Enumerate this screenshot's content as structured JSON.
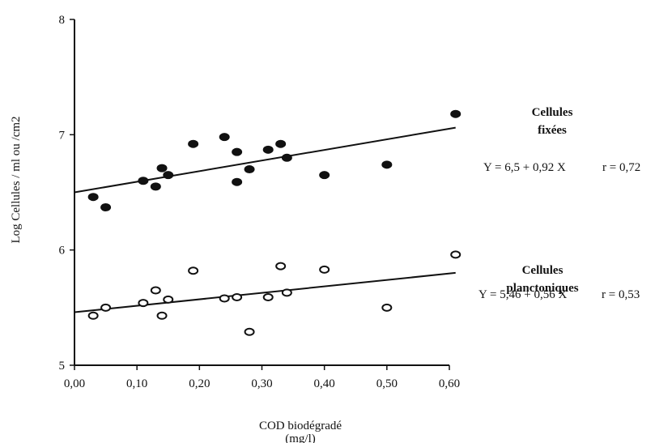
{
  "chart_data": {
    "type": "scatter",
    "title": "",
    "xlabel": "COD biodégradé",
    "xlabel_unit": "(mg/l)",
    "ylabel": "Log Cellules / ml ou /cm2",
    "xlim": [
      0,
      0.6
    ],
    "ylim": [
      5,
      8
    ],
    "x_ticks": [
      "0,00",
      "0,10",
      "0,20",
      "0,30",
      "0,40",
      "0,50",
      "0,60"
    ],
    "y_ticks": [
      "5",
      "6",
      "7",
      "8"
    ],
    "grid": false,
    "series": [
      {
        "name": "Cellules fixées",
        "name_lines": [
          "Cellules",
          "fixées"
        ],
        "marker": "filled-circle",
        "equation": "Y = 6,5 + 0,92 X",
        "r": "r = 0,72",
        "fit": {
          "intercept": 6.5,
          "slope": 0.92
        },
        "points": [
          [
            0.03,
            6.46
          ],
          [
            0.05,
            6.37
          ],
          [
            0.11,
            6.6
          ],
          [
            0.13,
            6.55
          ],
          [
            0.14,
            6.71
          ],
          [
            0.15,
            6.65
          ],
          [
            0.19,
            6.92
          ],
          [
            0.24,
            6.98
          ],
          [
            0.26,
            6.59
          ],
          [
            0.26,
            6.85
          ],
          [
            0.28,
            6.7
          ],
          [
            0.31,
            6.87
          ],
          [
            0.33,
            6.92
          ],
          [
            0.34,
            6.8
          ],
          [
            0.4,
            6.65
          ],
          [
            0.5,
            6.74
          ],
          [
            0.61,
            7.18
          ]
        ]
      },
      {
        "name": "Cellules planctoniques",
        "name_lines": [
          "Cellules",
          "planctoniques"
        ],
        "marker": "open-circle",
        "equation": "Y = 5,46 + 0,56 X",
        "r": "r = 0,53",
        "fit": {
          "intercept": 5.46,
          "slope": 0.56
        },
        "points": [
          [
            0.03,
            5.43
          ],
          [
            0.05,
            5.5
          ],
          [
            0.11,
            5.54
          ],
          [
            0.13,
            5.65
          ],
          [
            0.14,
            5.43
          ],
          [
            0.15,
            5.57
          ],
          [
            0.19,
            5.82
          ],
          [
            0.24,
            5.58
          ],
          [
            0.26,
            5.59
          ],
          [
            0.28,
            5.29
          ],
          [
            0.31,
            5.59
          ],
          [
            0.33,
            5.86
          ],
          [
            0.34,
            5.63
          ],
          [
            0.4,
            5.83
          ],
          [
            0.5,
            5.5
          ],
          [
            0.61,
            5.96
          ]
        ]
      }
    ]
  }
}
